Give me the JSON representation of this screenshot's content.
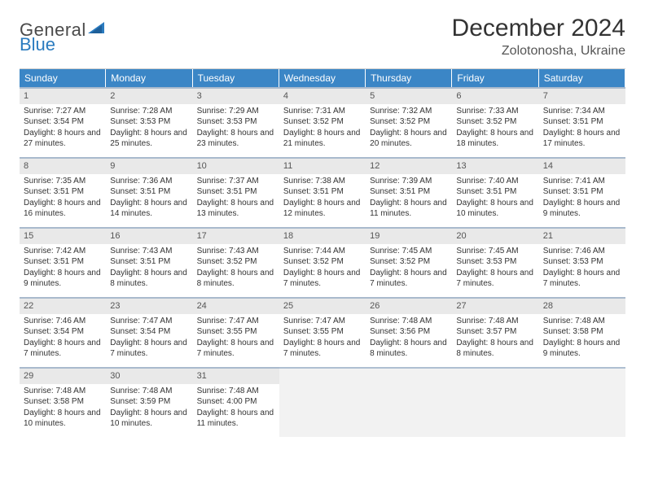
{
  "logo": {
    "textGeneral": "General",
    "textBlue": "Blue"
  },
  "header": {
    "title": "December 2024",
    "location": "Zolotonosha, Ukraine"
  },
  "colors": {
    "headerBg": "#3b86c6",
    "headerText": "#ffffff",
    "dayNumBg": "#e9e9e9",
    "border": "#6a8bb1",
    "blankBg": "#f2f2f2",
    "logoBlue": "#2a7bbf"
  },
  "weekdays": [
    "Sunday",
    "Monday",
    "Tuesday",
    "Wednesday",
    "Thursday",
    "Friday",
    "Saturday"
  ],
  "days": [
    {
      "n": 1,
      "sunrise": "7:27 AM",
      "sunset": "3:54 PM",
      "daylight": "8 hours and 27 minutes."
    },
    {
      "n": 2,
      "sunrise": "7:28 AM",
      "sunset": "3:53 PM",
      "daylight": "8 hours and 25 minutes."
    },
    {
      "n": 3,
      "sunrise": "7:29 AM",
      "sunset": "3:53 PM",
      "daylight": "8 hours and 23 minutes."
    },
    {
      "n": 4,
      "sunrise": "7:31 AM",
      "sunset": "3:52 PM",
      "daylight": "8 hours and 21 minutes."
    },
    {
      "n": 5,
      "sunrise": "7:32 AM",
      "sunset": "3:52 PM",
      "daylight": "8 hours and 20 minutes."
    },
    {
      "n": 6,
      "sunrise": "7:33 AM",
      "sunset": "3:52 PM",
      "daylight": "8 hours and 18 minutes."
    },
    {
      "n": 7,
      "sunrise": "7:34 AM",
      "sunset": "3:51 PM",
      "daylight": "8 hours and 17 minutes."
    },
    {
      "n": 8,
      "sunrise": "7:35 AM",
      "sunset": "3:51 PM",
      "daylight": "8 hours and 16 minutes."
    },
    {
      "n": 9,
      "sunrise": "7:36 AM",
      "sunset": "3:51 PM",
      "daylight": "8 hours and 14 minutes."
    },
    {
      "n": 10,
      "sunrise": "7:37 AM",
      "sunset": "3:51 PM",
      "daylight": "8 hours and 13 minutes."
    },
    {
      "n": 11,
      "sunrise": "7:38 AM",
      "sunset": "3:51 PM",
      "daylight": "8 hours and 12 minutes."
    },
    {
      "n": 12,
      "sunrise": "7:39 AM",
      "sunset": "3:51 PM",
      "daylight": "8 hours and 11 minutes."
    },
    {
      "n": 13,
      "sunrise": "7:40 AM",
      "sunset": "3:51 PM",
      "daylight": "8 hours and 10 minutes."
    },
    {
      "n": 14,
      "sunrise": "7:41 AM",
      "sunset": "3:51 PM",
      "daylight": "8 hours and 9 minutes."
    },
    {
      "n": 15,
      "sunrise": "7:42 AM",
      "sunset": "3:51 PM",
      "daylight": "8 hours and 9 minutes."
    },
    {
      "n": 16,
      "sunrise": "7:43 AM",
      "sunset": "3:51 PM",
      "daylight": "8 hours and 8 minutes."
    },
    {
      "n": 17,
      "sunrise": "7:43 AM",
      "sunset": "3:52 PM",
      "daylight": "8 hours and 8 minutes."
    },
    {
      "n": 18,
      "sunrise": "7:44 AM",
      "sunset": "3:52 PM",
      "daylight": "8 hours and 7 minutes."
    },
    {
      "n": 19,
      "sunrise": "7:45 AM",
      "sunset": "3:52 PM",
      "daylight": "8 hours and 7 minutes."
    },
    {
      "n": 20,
      "sunrise": "7:45 AM",
      "sunset": "3:53 PM",
      "daylight": "8 hours and 7 minutes."
    },
    {
      "n": 21,
      "sunrise": "7:46 AM",
      "sunset": "3:53 PM",
      "daylight": "8 hours and 7 minutes."
    },
    {
      "n": 22,
      "sunrise": "7:46 AM",
      "sunset": "3:54 PM",
      "daylight": "8 hours and 7 minutes."
    },
    {
      "n": 23,
      "sunrise": "7:47 AM",
      "sunset": "3:54 PM",
      "daylight": "8 hours and 7 minutes."
    },
    {
      "n": 24,
      "sunrise": "7:47 AM",
      "sunset": "3:55 PM",
      "daylight": "8 hours and 7 minutes."
    },
    {
      "n": 25,
      "sunrise": "7:47 AM",
      "sunset": "3:55 PM",
      "daylight": "8 hours and 7 minutes."
    },
    {
      "n": 26,
      "sunrise": "7:48 AM",
      "sunset": "3:56 PM",
      "daylight": "8 hours and 8 minutes."
    },
    {
      "n": 27,
      "sunrise": "7:48 AM",
      "sunset": "3:57 PM",
      "daylight": "8 hours and 8 minutes."
    },
    {
      "n": 28,
      "sunrise": "7:48 AM",
      "sunset": "3:58 PM",
      "daylight": "8 hours and 9 minutes."
    },
    {
      "n": 29,
      "sunrise": "7:48 AM",
      "sunset": "3:58 PM",
      "daylight": "8 hours and 10 minutes."
    },
    {
      "n": 30,
      "sunrise": "7:48 AM",
      "sunset": "3:59 PM",
      "daylight": "8 hours and 10 minutes."
    },
    {
      "n": 31,
      "sunrise": "7:48 AM",
      "sunset": "4:00 PM",
      "daylight": "8 hours and 11 minutes."
    }
  ],
  "labels": {
    "sunrise": "Sunrise:",
    "sunset": "Sunset:",
    "daylight": "Daylight:"
  },
  "layout": {
    "firstDayOffset": 0,
    "totalCells": 35
  }
}
